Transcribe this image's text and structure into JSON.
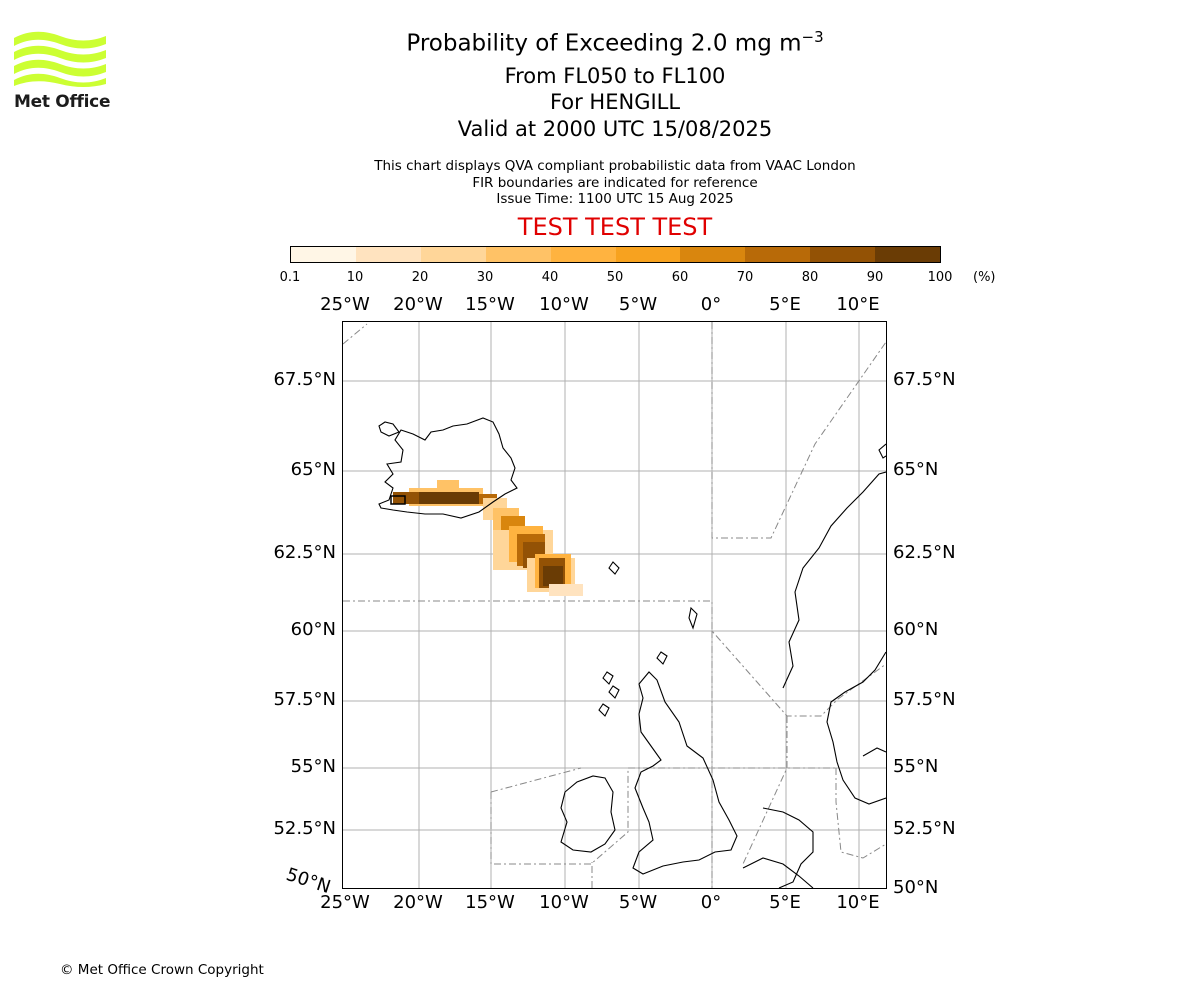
{
  "title": {
    "main_prefix": "Probability of Exceeding 2.0 mg m",
    "main_exp": "−3",
    "levels": "From FL050 to FL100",
    "location": "For HENGILL",
    "valid": "Valid at 2000 UTC 15/08/2025"
  },
  "info": {
    "line1": "This chart displays QVA compliant probabilistic data from VAAC London",
    "line2": "FIR boundaries are indicated for reference",
    "line3": "Issue Time: 1100 UTC 15 Aug 2025"
  },
  "test_banner": "TEST TEST TEST",
  "logo": {
    "name": "Met Office",
    "color": "#ccff33"
  },
  "colorbar": {
    "ticks": [
      "0.1",
      "10",
      "20",
      "30",
      "40",
      "50",
      "60",
      "70",
      "80",
      "90",
      "100"
    ],
    "unit": "(%)",
    "colors": [
      "#fff6e6",
      "#ffe3bf",
      "#ffd699",
      "#ffc266",
      "#ffb340",
      "#f7a21f",
      "#d9860e",
      "#b86a08",
      "#935205",
      "#6a3c05"
    ]
  },
  "axes": {
    "lon_labels": [
      "25°W",
      "20°W",
      "15°W",
      "10°W",
      "5°W",
      "0°",
      "5°E",
      "10°E"
    ],
    "lat_left": [
      "67.5°N",
      "65°N",
      "62.5°N",
      "60°N",
      "57.5°N",
      "55°N",
      "52.5°N"
    ],
    "lat_right": [
      "67.5°N",
      "65°N",
      "62.5°N",
      "60°N",
      "57.5°N",
      "55°N",
      "52.5°N",
      "50°N"
    ],
    "lat_corner": "50°N"
  },
  "copyright": "© Met Office Crown Copyright"
}
